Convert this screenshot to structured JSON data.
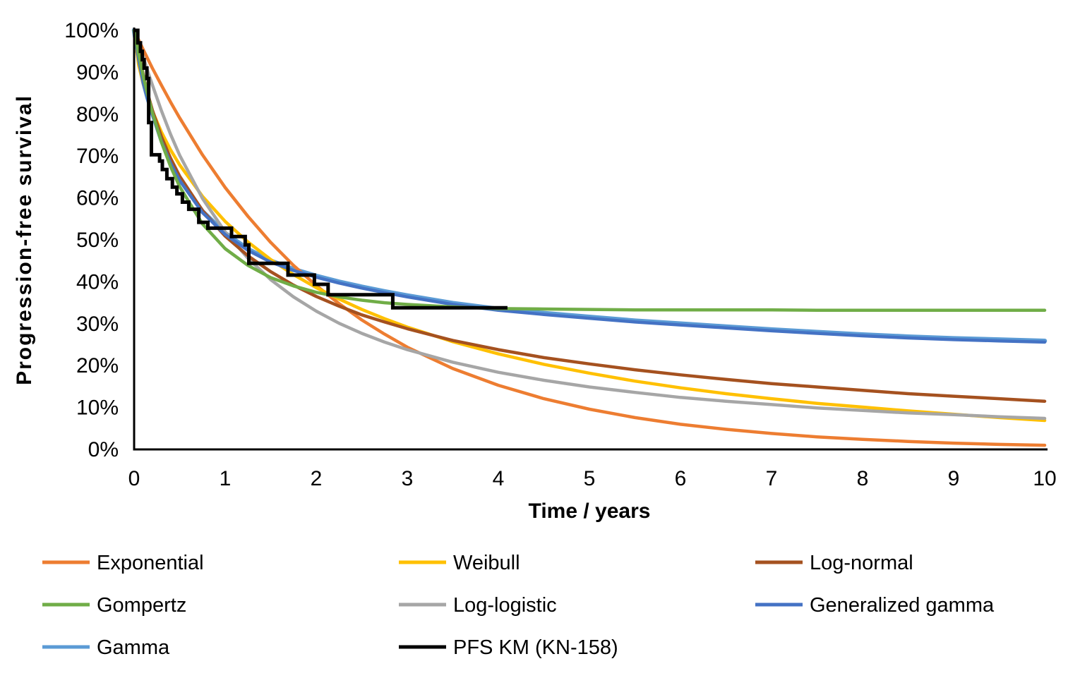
{
  "chart_data": {
    "type": "line",
    "title": "",
    "xlabel": "Time / years",
    "ylabel": "Progression-free survival",
    "xlim": [
      0,
      10
    ],
    "ylim": [
      0,
      100
    ],
    "grid": false,
    "legend_position": "bottom",
    "x_ticks": [
      0,
      1,
      2,
      3,
      4,
      5,
      6,
      7,
      8,
      9,
      10
    ],
    "x_tick_labels": [
      "0",
      "1",
      "2",
      "3",
      "4",
      "5",
      "6",
      "7",
      "8",
      "9",
      "10"
    ],
    "y_ticks": [
      100,
      90,
      80,
      70,
      60,
      50,
      40,
      30,
      20,
      10,
      0
    ],
    "y_tick_labels": [
      "100%",
      "90%",
      "80%",
      "70%",
      "60%",
      "50%",
      "40%",
      "30%",
      "20%",
      "10%",
      "0%"
    ],
    "t": [
      0,
      0.05,
      0.1,
      0.15,
      0.2,
      0.3,
      0.4,
      0.5,
      0.75,
      1,
      1.25,
      1.5,
      1.75,
      2,
      2.25,
      2.5,
      2.75,
      3,
      3.5,
      4,
      4.5,
      5,
      5.5,
      6,
      6.5,
      7,
      7.5,
      8,
      8.5,
      9,
      9.5,
      10
    ],
    "series": [
      {
        "name": "Gamma",
        "color": "#5B9BD5",
        "width": 6.5,
        "values": [
          100,
          93.2,
          87.8,
          83.8,
          80.3,
          73.8,
          68.6,
          64.5,
          56.8,
          51.6,
          47.8,
          45.0,
          43.0,
          41.4,
          40.0,
          38.8,
          37.7,
          36.7,
          34.9,
          33.5,
          32.5,
          31.6,
          30.7,
          30.0,
          29.3,
          28.6,
          28.0,
          27.4,
          26.9,
          26.5,
          26.2,
          25.9
        ]
      },
      {
        "name": "Exponential",
        "color": "#ED7D31",
        "width": 4.5,
        "values": [
          100,
          97.7,
          95.4,
          93.2,
          91.0,
          86.9,
          82.9,
          79.1,
          70.3,
          62.5,
          55.6,
          49.4,
          43.9,
          39.1,
          34.8,
          30.9,
          27.5,
          24.4,
          19.3,
          15.3,
          12.1,
          9.6,
          7.6,
          6.0,
          4.8,
          3.8,
          3.0,
          2.4,
          1.9,
          1.5,
          1.2,
          1.0
        ]
      },
      {
        "name": "Weibull",
        "color": "#FFC000",
        "width": 4.5,
        "values": [
          100,
          91.7,
          87.3,
          83.8,
          80.8,
          75.7,
          71.5,
          67.9,
          60.4,
          54.4,
          49.5,
          45.3,
          41.7,
          38.6,
          35.9,
          33.4,
          31.2,
          29.2,
          25.7,
          22.8,
          20.3,
          18.2,
          16.3,
          14.7,
          13.3,
          12.1,
          11.0,
          10.1,
          9.2,
          8.4,
          7.6,
          6.9
        ]
      },
      {
        "name": "Log-logistic",
        "color": "#A6A6A6",
        "width": 4.5,
        "values": [
          100,
          97.0,
          93.6,
          90.2,
          87.0,
          80.8,
          75.2,
          70.2,
          59.9,
          51.9,
          45.6,
          40.5,
          36.4,
          33.0,
          30.1,
          27.7,
          25.6,
          23.8,
          20.8,
          18.4,
          16.5,
          14.9,
          13.6,
          12.4,
          11.5,
          10.7,
          9.9,
          9.3,
          8.7,
          8.3,
          7.8,
          7.4
        ]
      },
      {
        "name": "Log-normal",
        "color": "#A5511F",
        "width": 4.5,
        "values": [
          100,
          94.7,
          89.4,
          84.9,
          81.0,
          74.6,
          69.5,
          65.2,
          57.0,
          50.9,
          46.2,
          42.4,
          39.2,
          36.5,
          34.2,
          32.1,
          30.4,
          28.8,
          26.0,
          23.8,
          21.9,
          20.4,
          19.0,
          17.8,
          16.7,
          15.7,
          14.9,
          14.1,
          13.3,
          12.7,
          12.1,
          11.5
        ]
      },
      {
        "name": "Generalized gamma",
        "color": "#4472C4",
        "width": 4.5,
        "values": [
          100,
          93.0,
          87.5,
          83.5,
          80.0,
          73.5,
          68.3,
          64.2,
          56.5,
          51.3,
          47.5,
          44.7,
          42.7,
          41.1,
          39.7,
          38.5,
          37.4,
          36.4,
          34.6,
          33.2,
          32.2,
          31.3,
          30.4,
          29.7,
          29.0,
          28.3,
          27.7,
          27.1,
          26.6,
          26.2,
          25.9,
          25.6
        ]
      },
      {
        "name": "Gompertz",
        "color": "#70AD47",
        "width": 4.5,
        "values": [
          100,
          94.3,
          89.1,
          84.6,
          80.4,
          73.3,
          67.5,
          62.7,
          53.8,
          47.9,
          43.9,
          41.0,
          39.0,
          37.5,
          36.4,
          35.6,
          35.0,
          34.6,
          34.0,
          33.6,
          33.5,
          33.4,
          33.3,
          33.3,
          33.3,
          33.3,
          33.2,
          33.2,
          33.2,
          33.2,
          33.2,
          33.2
        ]
      }
    ],
    "km_series": {
      "name": "PFS KM (KN-158)",
      "color": "#000000",
      "width": 5,
      "points": [
        [
          0,
          100
        ],
        [
          0.04,
          97
        ],
        [
          0.07,
          95
        ],
        [
          0.09,
          93
        ],
        [
          0.11,
          91
        ],
        [
          0.14,
          88.5
        ],
        [
          0.16,
          78
        ],
        [
          0.19,
          70.3
        ],
        [
          0.28,
          68.8
        ],
        [
          0.31,
          66.8
        ],
        [
          0.36,
          64.6
        ],
        [
          0.42,
          62.6
        ],
        [
          0.47,
          61.0
        ],
        [
          0.53,
          59.0
        ],
        [
          0.6,
          57.3
        ],
        [
          0.71,
          54.2
        ],
        [
          0.81,
          52.8
        ],
        [
          1.07,
          50.8
        ],
        [
          1.22,
          48.8
        ],
        [
          1.26,
          44.4
        ],
        [
          1.69,
          41.6
        ],
        [
          1.98,
          39.4
        ],
        [
          2.13,
          36.9
        ],
        [
          2.84,
          33.8
        ],
        [
          4.1,
          33.8
        ]
      ]
    },
    "legend_rows": [
      [
        "Exponential",
        "Weibull",
        "Log-normal"
      ],
      [
        "Gompertz",
        "Log-logistic",
        "Generalized gamma"
      ],
      [
        "Gamma",
        "PFS KM (KN-158)"
      ]
    ]
  }
}
